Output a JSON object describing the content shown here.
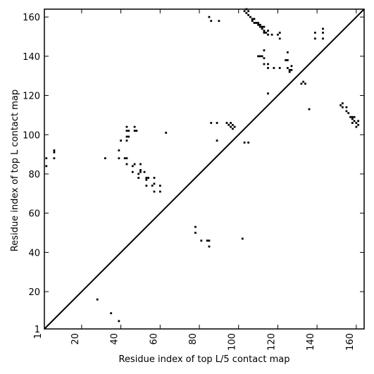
{
  "chart_data": {
    "type": "scatter",
    "xlabel": "Residue index of top L/5 contact map",
    "ylabel": "Residue index of top L contact map",
    "xlim": [
      1,
      164
    ],
    "ylim": [
      1,
      164
    ],
    "xticks": [
      1,
      20,
      40,
      60,
      80,
      100,
      120,
      140,
      160
    ],
    "yticks": [
      1,
      20,
      40,
      60,
      80,
      100,
      120,
      140,
      160
    ],
    "diagonal_line": true,
    "grid": false,
    "marker_color": "#000000",
    "series": [
      {
        "points": [
          [
            28,
            16
          ],
          [
            35,
            9
          ],
          [
            39,
            5
          ],
          [
            78,
            53
          ],
          [
            78,
            50
          ],
          [
            81,
            46
          ],
          [
            84,
            46
          ],
          [
            85,
            46
          ],
          [
            85,
            43
          ],
          [
            102,
            47
          ]
        ]
      },
      {
        "points": [
          [
            2,
            84
          ],
          [
            2,
            88
          ],
          [
            6,
            88
          ],
          [
            6,
            91
          ],
          [
            6,
            92
          ],
          [
            32,
            88
          ],
          [
            39,
            88
          ],
          [
            39,
            92
          ],
          [
            40,
            97
          ],
          [
            42,
            88
          ],
          [
            43,
            88
          ],
          [
            43,
            85
          ],
          [
            43,
            97
          ],
          [
            43,
            99
          ],
          [
            44,
            99
          ],
          [
            43,
            102
          ],
          [
            44,
            102
          ],
          [
            43,
            104
          ],
          [
            46,
            81
          ],
          [
            46,
            84
          ],
          [
            47,
            85
          ],
          [
            47,
            102
          ],
          [
            48,
            102
          ],
          [
            47,
            104
          ],
          [
            49,
            78
          ],
          [
            49,
            80
          ],
          [
            50,
            81
          ],
          [
            50,
            82
          ],
          [
            50,
            85
          ],
          [
            52,
            81
          ],
          [
            53,
            74
          ],
          [
            53,
            77
          ],
          [
            53,
            78
          ],
          [
            54,
            78
          ],
          [
            56,
            74
          ],
          [
            57,
            75
          ],
          [
            57,
            71
          ],
          [
            57,
            78
          ],
          [
            60,
            71
          ],
          [
            60,
            74
          ],
          [
            63,
            101
          ],
          [
            86,
            106
          ],
          [
            89,
            97
          ],
          [
            89,
            106
          ],
          [
            94,
            106
          ],
          [
            95,
            105
          ],
          [
            96,
            104
          ],
          [
            97,
            103
          ],
          [
            96,
            106
          ],
          [
            97,
            105
          ],
          [
            98,
            104
          ],
          [
            103,
            96
          ],
          [
            105,
            96
          ],
          [
            85,
            160
          ],
          [
            86,
            158
          ],
          [
            90,
            158
          ],
          [
            103,
            163
          ],
          [
            104,
            162
          ],
          [
            105,
            161
          ],
          [
            106,
            160
          ],
          [
            107,
            159
          ],
          [
            107,
            158
          ],
          [
            108,
            157
          ],
          [
            109,
            157
          ],
          [
            110,
            156
          ],
          [
            111,
            156
          ],
          [
            112,
            155
          ],
          [
            112,
            154
          ],
          [
            113,
            153
          ],
          [
            113,
            152
          ],
          [
            114,
            152
          ],
          [
            115,
            151
          ],
          [
            115,
            153
          ],
          [
            104,
            164
          ],
          [
            105,
            163
          ],
          [
            108,
            159
          ],
          [
            110,
            157
          ],
          [
            111,
            155
          ],
          [
            113,
            155
          ],
          [
            117,
            151
          ],
          [
            120,
            151
          ],
          [
            121,
            152
          ],
          [
            121,
            149
          ],
          [
            110,
            140
          ],
          [
            111,
            140
          ],
          [
            112,
            140
          ],
          [
            113,
            143
          ],
          [
            113,
            139
          ],
          [
            113,
            136
          ],
          [
            115,
            134
          ],
          [
            115,
            136
          ],
          [
            118,
            134
          ],
          [
            121,
            134
          ],
          [
            115,
            121
          ],
          [
            124,
            138
          ],
          [
            125,
            138
          ],
          [
            125,
            142
          ],
          [
            125,
            134
          ],
          [
            126,
            133
          ],
          [
            126,
            132
          ],
          [
            127,
            133
          ],
          [
            127,
            135
          ],
          [
            132,
            126
          ],
          [
            133,
            127
          ],
          [
            134,
            126
          ],
          [
            136,
            113
          ],
          [
            139,
            149
          ],
          [
            139,
            152
          ],
          [
            143,
            149
          ],
          [
            143,
            152
          ],
          [
            143,
            154
          ],
          [
            152,
            115
          ],
          [
            153,
            114
          ],
          [
            153,
            116
          ],
          [
            155,
            112
          ],
          [
            155,
            114
          ],
          [
            156,
            111
          ],
          [
            157,
            109
          ],
          [
            158,
            108
          ],
          [
            158,
            109
          ],
          [
            158,
            106
          ],
          [
            159,
            107
          ],
          [
            159,
            109
          ],
          [
            160,
            104
          ],
          [
            160,
            106
          ],
          [
            161,
            107
          ],
          [
            161,
            105
          ]
        ]
      }
    ]
  }
}
